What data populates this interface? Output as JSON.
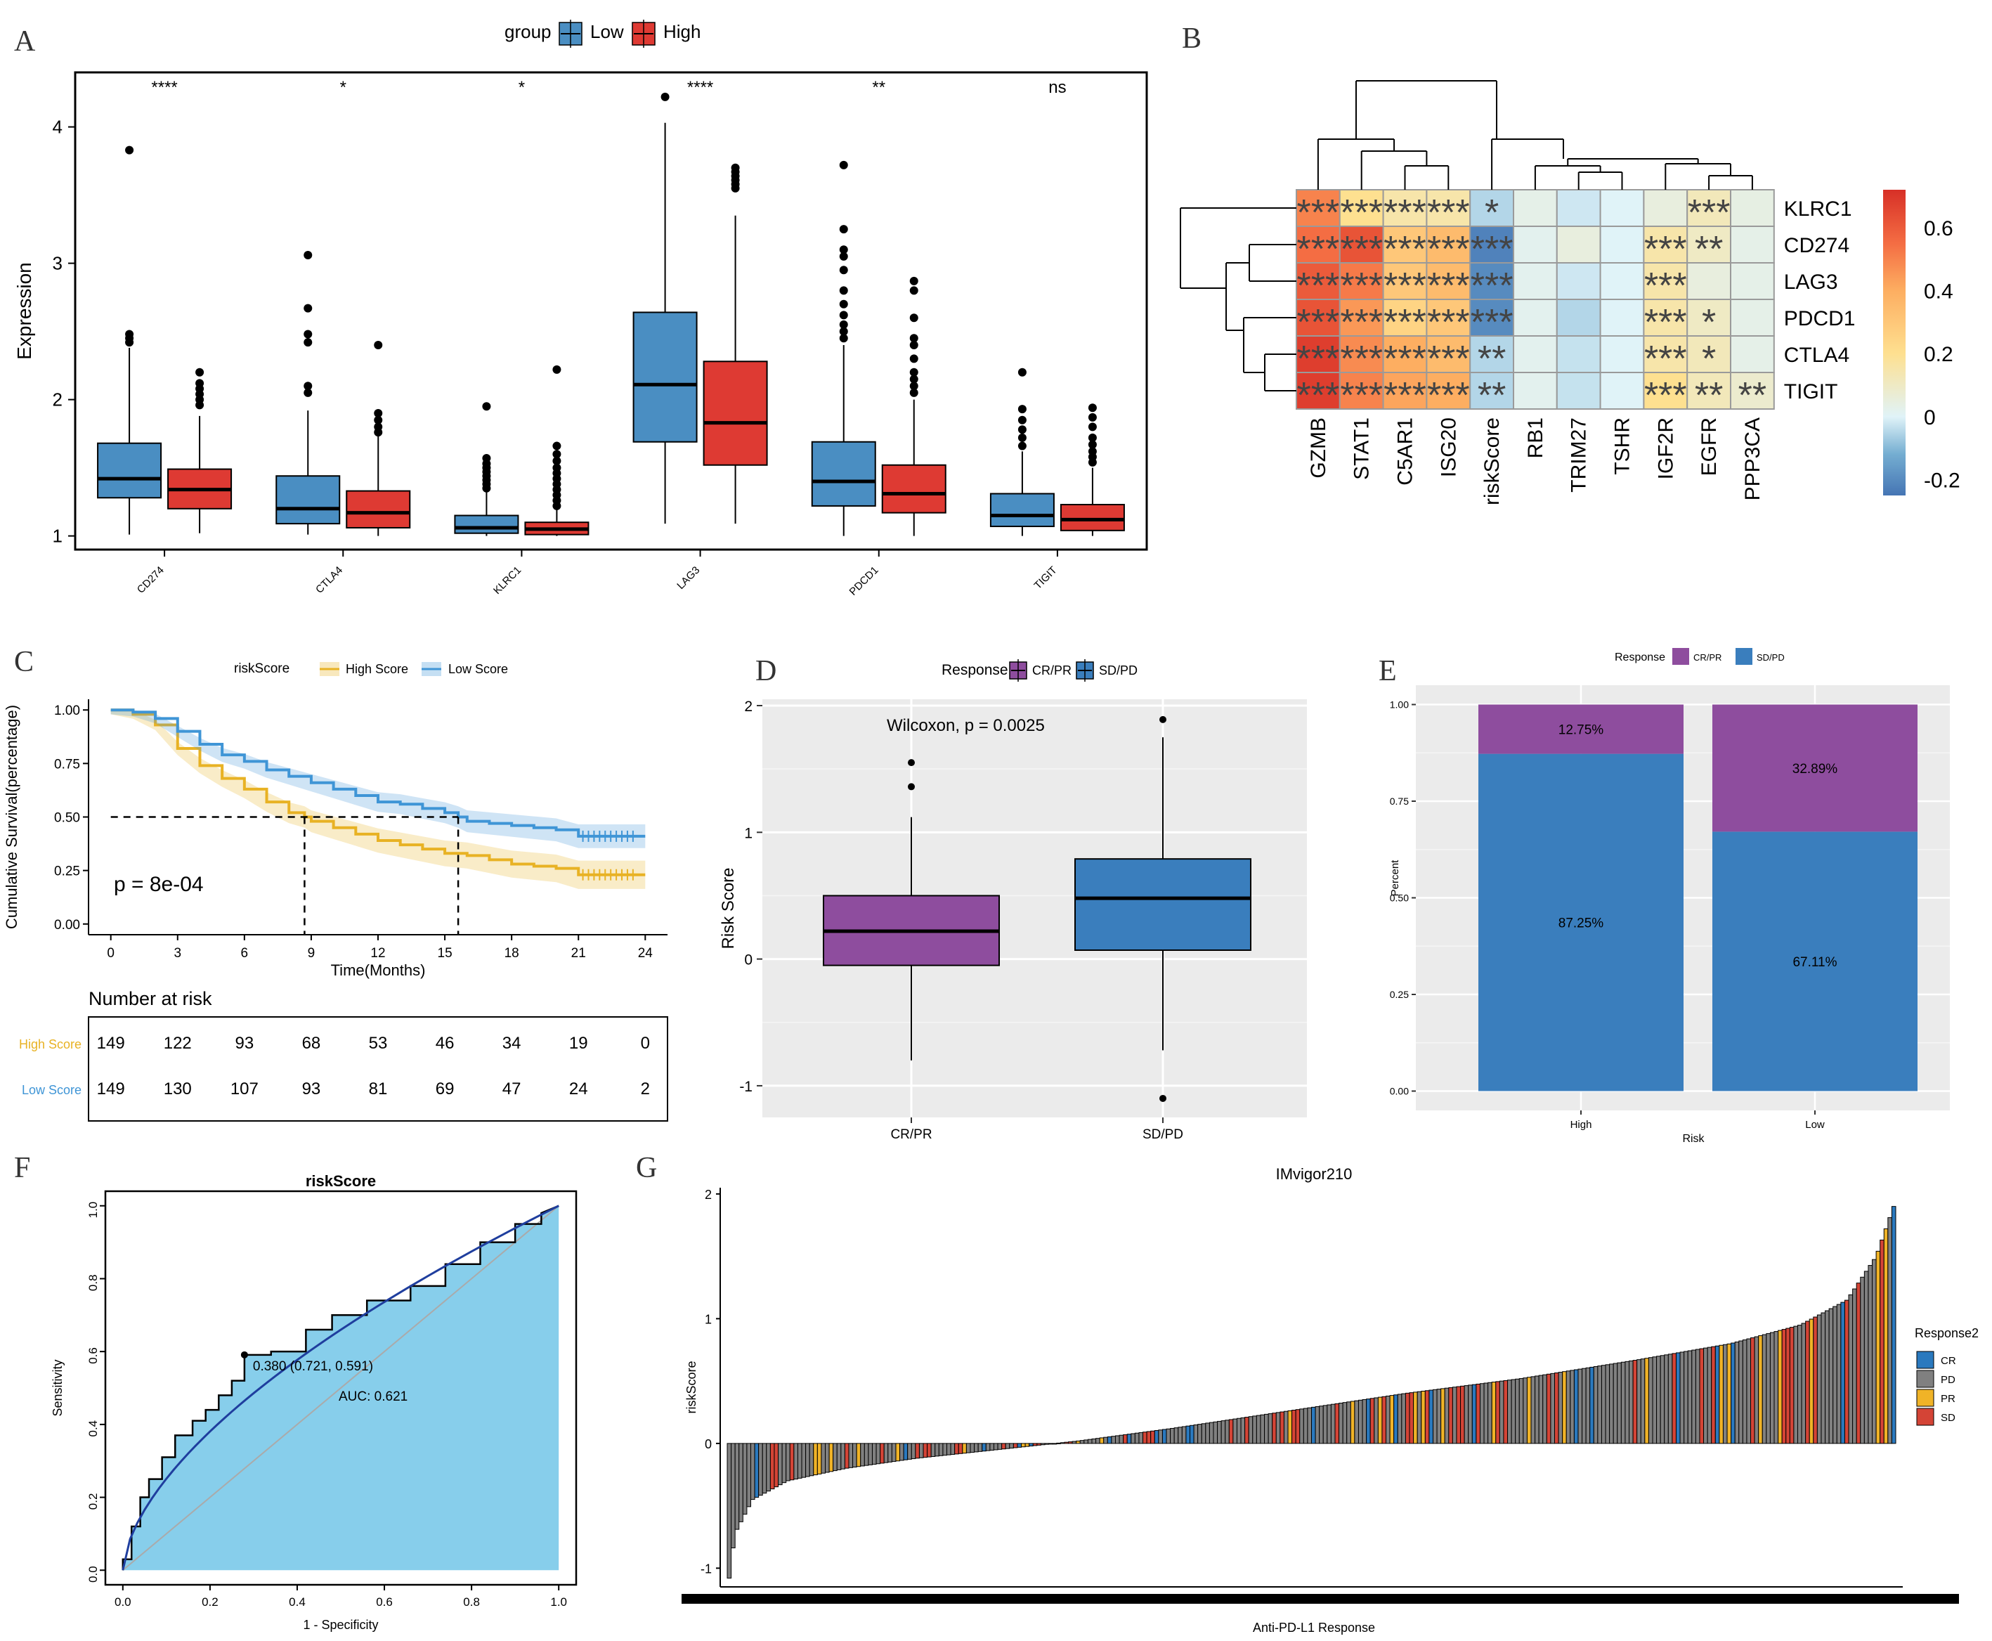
{
  "panels": [
    "A",
    "B",
    "C",
    "D",
    "E",
    "F",
    "G"
  ],
  "chart_data": [
    {
      "id": "A",
      "type": "boxplot",
      "ylabel": "Expression",
      "ylim": [
        0.9,
        4.4
      ],
      "yticks": [
        1,
        2,
        3,
        4
      ],
      "legend": {
        "title": "group",
        "entries": [
          "Low",
          "High"
        ],
        "position": "top"
      },
      "colors": {
        "Low": "#4a8ec2",
        "High": "#de3a33"
      },
      "categories": [
        "CD274",
        "CTLA4",
        "KLRC1",
        "LAG3",
        "PDCD1",
        "TIGIT"
      ],
      "significance": [
        "****",
        "*",
        "*",
        "****",
        "**",
        "ns"
      ],
      "series": [
        {
          "name": "Low",
          "boxes": [
            {
              "min": 1.01,
              "q1": 1.28,
              "median": 1.42,
              "q3": 1.68,
              "max": 2.38,
              "outliers": [
                2.42,
                2.45,
                2.48,
                3.83
              ]
            },
            {
              "min": 1.01,
              "q1": 1.09,
              "median": 1.2,
              "q3": 1.44,
              "max": 1.92,
              "outliers": [
                2.05,
                2.1,
                2.42,
                2.48,
                2.67,
                3.06
              ]
            },
            {
              "min": 1.0,
              "q1": 1.02,
              "median": 1.06,
              "q3": 1.15,
              "max": 1.32,
              "outliers": [
                1.35,
                1.38,
                1.41,
                1.44,
                1.47,
                1.5,
                1.53,
                1.57,
                1.95
              ]
            },
            {
              "min": 1.09,
              "q1": 1.69,
              "median": 2.11,
              "q3": 2.64,
              "max": 4.03,
              "outliers": [
                4.22
              ]
            },
            {
              "min": 1.0,
              "q1": 1.22,
              "median": 1.4,
              "q3": 1.69,
              "max": 2.4,
              "outliers": [
                2.45,
                2.5,
                2.55,
                2.62,
                2.7,
                2.8,
                2.95,
                3.05,
                3.1,
                3.25,
                3.72
              ]
            },
            {
              "min": 1.0,
              "q1": 1.07,
              "median": 1.15,
              "q3": 1.31,
              "max": 1.62,
              "outliers": [
                1.66,
                1.72,
                1.78,
                1.85,
                1.93,
                2.2
              ]
            }
          ]
        },
        {
          "name": "High",
          "boxes": [
            {
              "min": 1.02,
              "q1": 1.2,
              "median": 1.34,
              "q3": 1.49,
              "max": 1.88,
              "outliers": [
                1.96,
                2.0,
                2.04,
                2.08,
                2.12,
                2.2
              ]
            },
            {
              "min": 1.0,
              "q1": 1.06,
              "median": 1.17,
              "q3": 1.33,
              "max": 1.73,
              "outliers": [
                1.76,
                1.8,
                1.85,
                1.9,
                2.4
              ]
            },
            {
              "min": 1.0,
              "q1": 1.01,
              "median": 1.05,
              "q3": 1.1,
              "max": 1.2,
              "outliers": [
                1.22,
                1.26,
                1.3,
                1.34,
                1.38,
                1.42,
                1.46,
                1.5,
                1.55,
                1.6,
                1.66,
                2.22
              ]
            },
            {
              "min": 1.09,
              "q1": 1.52,
              "median": 1.83,
              "q3": 2.28,
              "max": 3.35,
              "outliers": [
                3.55,
                3.58,
                3.61,
                3.64,
                3.67,
                3.7
              ]
            },
            {
              "min": 1.0,
              "q1": 1.17,
              "median": 1.31,
              "q3": 1.52,
              "max": 2.0,
              "outliers": [
                2.05,
                2.1,
                2.15,
                2.2,
                2.3,
                2.4,
                2.45,
                2.6,
                2.8,
                2.87
              ]
            },
            {
              "min": 1.0,
              "q1": 1.04,
              "median": 1.12,
              "q3": 1.23,
              "max": 1.5,
              "outliers": [
                1.54,
                1.58,
                1.62,
                1.67,
                1.72,
                1.8,
                1.87,
                1.94
              ]
            }
          ]
        }
      ]
    },
    {
      "id": "B",
      "type": "heatmap",
      "rows": [
        "KLRC1",
        "CD274",
        "LAG3",
        "PDCD1",
        "CTLA4",
        "TIGIT"
      ],
      "cols": [
        "GZMB",
        "STAT1",
        "C5AR1",
        "ISG20",
        "riskScore",
        "RB1",
        "TRIM27",
        "TSHR",
        "IGF2R",
        "EGFR",
        "PPP3CA"
      ],
      "values": [
        [
          0.5,
          0.2,
          0.15,
          0.15,
          -0.05,
          0.03,
          -0.02,
          0.0,
          0.05,
          0.12,
          0.04
        ],
        [
          0.55,
          0.62,
          0.3,
          0.35,
          -0.22,
          0.02,
          0.05,
          0.0,
          0.15,
          0.1,
          0.03
        ],
        [
          0.6,
          0.52,
          0.3,
          0.35,
          -0.2,
          0.02,
          -0.02,
          0.0,
          0.15,
          0.05,
          0.03
        ],
        [
          0.62,
          0.45,
          0.25,
          0.3,
          -0.2,
          0.02,
          -0.05,
          0.0,
          0.15,
          0.1,
          0.03
        ],
        [
          0.68,
          0.48,
          0.4,
          0.35,
          -0.05,
          0.02,
          -0.03,
          0.0,
          0.15,
          0.12,
          0.03
        ],
        [
          0.68,
          0.5,
          0.42,
          0.4,
          -0.05,
          0.02,
          -0.03,
          0.0,
          0.2,
          0.12,
          0.08
        ]
      ],
      "stars": [
        [
          "***",
          "***",
          "***",
          "***",
          "*",
          "",
          "",
          "",
          "",
          "***",
          ""
        ],
        [
          "***",
          "***",
          "***",
          "***",
          "***",
          "",
          "",
          "",
          "***",
          "**",
          ""
        ],
        [
          "***",
          "***",
          "***",
          "***",
          "***",
          "",
          "",
          "",
          "***",
          "",
          ""
        ],
        [
          "***",
          "***",
          "***",
          "***",
          "***",
          "",
          "",
          "",
          "***",
          "*",
          ""
        ],
        [
          "***",
          "***",
          "***",
          "***",
          "**",
          "",
          "",
          "",
          "***",
          "*",
          ""
        ],
        [
          "***",
          "***",
          "***",
          "***",
          "**",
          "",
          "",
          "",
          "***",
          "**",
          "**"
        ]
      ],
      "colorbar": {
        "ticks": [
          0.6,
          0.4,
          0.2,
          0,
          -0.2
        ],
        "range": [
          -0.25,
          0.72
        ]
      }
    },
    {
      "id": "C",
      "type": "line",
      "subtype": "kaplan-meier",
      "xlabel": "Time(Months)",
      "ylabel": "Cumulative Survival(percentage)",
      "xticks": [
        0,
        3,
        6,
        9,
        12,
        15,
        18,
        21,
        24
      ],
      "yticks": [
        "0.00",
        "0.25",
        "0.50",
        "0.75",
        "1.00"
      ],
      "pvalue": "p = 8e-04",
      "legend": {
        "title": "riskScore",
        "entries": [
          "High Score",
          "Low Score"
        ],
        "position": "top"
      },
      "colors": {
        "High Score": "#e8b224",
        "Low Score": "#3f95d6"
      },
      "series": [
        {
          "name": "High Score",
          "x": [
            0,
            1,
            2,
            3,
            4,
            5,
            6,
            7,
            8,
            8.7,
            9,
            10,
            11,
            12,
            13,
            14,
            15,
            16,
            17,
            18,
            19,
            20,
            21,
            22,
            23,
            24
          ],
          "y": [
            1.0,
            0.98,
            0.93,
            0.82,
            0.74,
            0.68,
            0.63,
            0.57,
            0.52,
            0.5,
            0.48,
            0.45,
            0.42,
            0.39,
            0.37,
            0.35,
            0.33,
            0.32,
            0.3,
            0.28,
            0.27,
            0.26,
            0.23,
            0.23,
            0.23,
            0.23
          ]
        },
        {
          "name": "Low Score",
          "x": [
            0,
            1,
            2,
            3,
            4,
            5,
            6,
            7,
            8,
            9,
            10,
            11,
            12,
            13,
            14,
            15,
            15.6,
            16,
            17,
            18,
            19,
            20,
            21,
            22,
            23,
            24
          ],
          "y": [
            1.0,
            0.99,
            0.96,
            0.9,
            0.84,
            0.79,
            0.76,
            0.72,
            0.69,
            0.66,
            0.63,
            0.6,
            0.57,
            0.56,
            0.54,
            0.52,
            0.5,
            0.48,
            0.47,
            0.46,
            0.45,
            0.44,
            0.41,
            0.41,
            0.41,
            0.41
          ]
        }
      ],
      "median_lines": [
        8.7,
        15.6
      ],
      "risk_table": {
        "title": "Number at risk",
        "rows": [
          {
            "label": "High Score",
            "values": [
              149,
              122,
              93,
              68,
              53,
              46,
              34,
              19,
              0
            ]
          },
          {
            "label": "Low Score",
            "values": [
              149,
              130,
              107,
              93,
              81,
              69,
              47,
              24,
              2
            ]
          }
        ]
      }
    },
    {
      "id": "D",
      "type": "boxplot",
      "ylabel": "Risk Score",
      "ylim": [
        -1.25,
        2.05
      ],
      "yticks": [
        -1,
        0,
        1,
        2
      ],
      "annotation": "Wilcoxon, p = 0.0025",
      "legend": {
        "title": "Response",
        "entries": [
          "CR/PR",
          "SD/PD"
        ],
        "position": "top"
      },
      "colors": {
        "CR/PR": "#8e4d9e",
        "SD/PD": "#3a7ebd"
      },
      "categories": [
        "CR/PR",
        "SD/PD"
      ],
      "boxes": [
        {
          "min": -0.8,
          "q1": -0.05,
          "median": 0.22,
          "q3": 0.5,
          "max": 1.12,
          "outliers": [
            1.36,
            1.55
          ]
        },
        {
          "min": -0.72,
          "q1": 0.07,
          "median": 0.48,
          "q3": 0.79,
          "max": 1.75,
          "outliers": [
            1.89,
            -1.1
          ]
        }
      ]
    },
    {
      "id": "E",
      "type": "bar",
      "subtype": "stacked-percent",
      "xlabel": "Risk",
      "ylabel": "Percent",
      "yticks": [
        "0.00",
        "0.25",
        "0.50",
        "0.75",
        "1.00"
      ],
      "legend": {
        "title": "Response",
        "entries": [
          "CR/PR",
          "SD/PD"
        ],
        "position": "top"
      },
      "colors": {
        "CR/PR": "#8e4d9e",
        "SD/PD": "#3a7ebd"
      },
      "categories": [
        "High",
        "Low"
      ],
      "series": [
        {
          "name": "SD/PD",
          "values": [
            0.8725,
            0.6711
          ],
          "labels": [
            "87.25%",
            "67.11%"
          ]
        },
        {
          "name": "CR/PR",
          "values": [
            0.1275,
            0.3289
          ],
          "labels": [
            "12.75%",
            "32.89%"
          ]
        }
      ]
    },
    {
      "id": "F",
      "type": "line",
      "subtype": "roc",
      "title": "riskScore",
      "xlabel": "1 - Specificity",
      "ylabel": "Sensitivity",
      "ticks": [
        "0.0",
        "0.2",
        "0.4",
        "0.6",
        "0.8",
        "1.0"
      ],
      "auc": "AUC: 0.621",
      "threshold": "0.380 (0.721, 0.591)",
      "threshold_point": [
        0.279,
        0.591
      ],
      "fill_color": "#87ceeb",
      "step_x": [
        0,
        0,
        0.02,
        0.02,
        0.04,
        0.04,
        0.06,
        0.06,
        0.09,
        0.09,
        0.12,
        0.12,
        0.16,
        0.16,
        0.19,
        0.19,
        0.22,
        0.22,
        0.25,
        0.25,
        0.279,
        0.279,
        0.34,
        0.34,
        0.42,
        0.42,
        0.48,
        0.48,
        0.56,
        0.56,
        0.66,
        0.66,
        0.74,
        0.74,
        0.82,
        0.82,
        0.9,
        0.9,
        0.96,
        0.96,
        1
      ],
      "step_y": [
        0,
        0.03,
        0.03,
        0.12,
        0.12,
        0.2,
        0.2,
        0.25,
        0.25,
        0.31,
        0.31,
        0.37,
        0.37,
        0.41,
        0.41,
        0.44,
        0.44,
        0.48,
        0.48,
        0.52,
        0.52,
        0.591,
        0.591,
        0.6,
        0.6,
        0.66,
        0.66,
        0.7,
        0.7,
        0.74,
        0.74,
        0.78,
        0.78,
        0.84,
        0.84,
        0.9,
        0.9,
        0.95,
        0.95,
        0.98,
        1
      ],
      "smooth_power": 0.6
    },
    {
      "id": "G",
      "type": "bar",
      "subtype": "waterfall",
      "title": "IMvigor210",
      "xlabel": "Anti-PD-L1 Response",
      "ylabel": "riskScore",
      "yticks": [
        -1,
        0,
        1,
        2
      ],
      "ylim": [
        -1.15,
        2.05
      ],
      "legend": {
        "title": "Response2",
        "entries": [
          "CR",
          "PD",
          "PR",
          "SD"
        ],
        "position": "right"
      },
      "colors": {
        "CR": "#2a79be",
        "PD": "#808080",
        "PR": "#f0b327",
        "SD": "#d44436"
      },
      "n_bars": 298,
      "curve": {
        "q": [
          0,
          0.005,
          0.02,
          0.05,
          0.1,
          0.16,
          0.22,
          0.3,
          0.38,
          0.48,
          0.58,
          0.68,
          0.78,
          0.86,
          0.92,
          0.96,
          0.985,
          1
        ],
        "v": [
          -1.08,
          -0.72,
          -0.45,
          -0.3,
          -0.2,
          -0.12,
          -0.06,
          0.02,
          0.12,
          0.26,
          0.4,
          0.52,
          0.67,
          0.8,
          0.95,
          1.15,
          1.5,
          1.9
        ]
      },
      "response_mix": {
        "PD": 0.6,
        "SD": 0.2,
        "CR": 0.1,
        "PR": 0.1
      }
    }
  ]
}
